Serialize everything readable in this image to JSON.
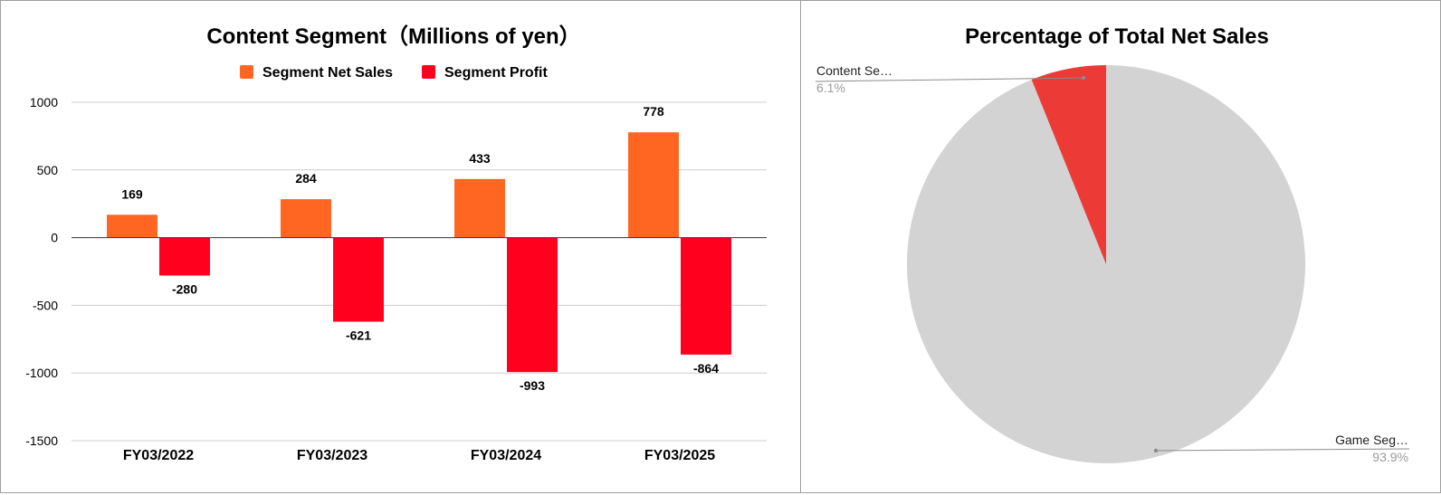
{
  "bar_panel": {
    "title": "Content Segment（Millions of yen）",
    "legend": [
      {
        "name": "Segment Net Sales",
        "color": "#FF6622"
      },
      {
        "name": "Segment Profit",
        "color": "#FF001E"
      }
    ]
  },
  "pie_panel": {
    "title": "Percentage of Total Net Sales",
    "slices": [
      {
        "name": "Content Se…",
        "pct_label": "6.1%",
        "color": "#EC3A37"
      },
      {
        "name": "Game Seg…",
        "pct_label": "93.9%",
        "color": "#D3D3D3"
      }
    ]
  },
  "chart_data": [
    {
      "type": "bar",
      "title": "Content Segment（Millions of yen）",
      "categories": [
        "FY03/2022",
        "FY03/2023",
        "FY03/2024",
        "FY03/2025"
      ],
      "series": [
        {
          "name": "Segment Net Sales",
          "values": [
            169,
            284,
            433,
            778
          ],
          "color": "#FF6622"
        },
        {
          "name": "Segment Profit",
          "values": [
            -280,
            -621,
            -993,
            -864
          ],
          "color": "#FF001E"
        }
      ],
      "data_labels": [
        [
          "169",
          "284",
          "433",
          "778"
        ],
        [
          "-280",
          "-621",
          "-993",
          "-864"
        ]
      ],
      "ylim": [
        -1500,
        1000
      ],
      "yticks": [
        1000,
        500,
        0,
        -500,
        -1000,
        -1500
      ],
      "ytick_labels": [
        "1000",
        "500",
        "0",
        "-500",
        "-1000",
        "-1500"
      ],
      "grid": true,
      "legend_position": "top",
      "xlabel": "",
      "ylabel": ""
    },
    {
      "type": "pie",
      "title": "Percentage of Total Net Sales",
      "labels": [
        "Content Se…",
        "Game Seg…"
      ],
      "values": [
        6.1,
        93.9
      ],
      "value_labels": [
        "6.1%",
        "93.9%"
      ],
      "colors": [
        "#EC3A37",
        "#D3D3D3"
      ]
    }
  ]
}
